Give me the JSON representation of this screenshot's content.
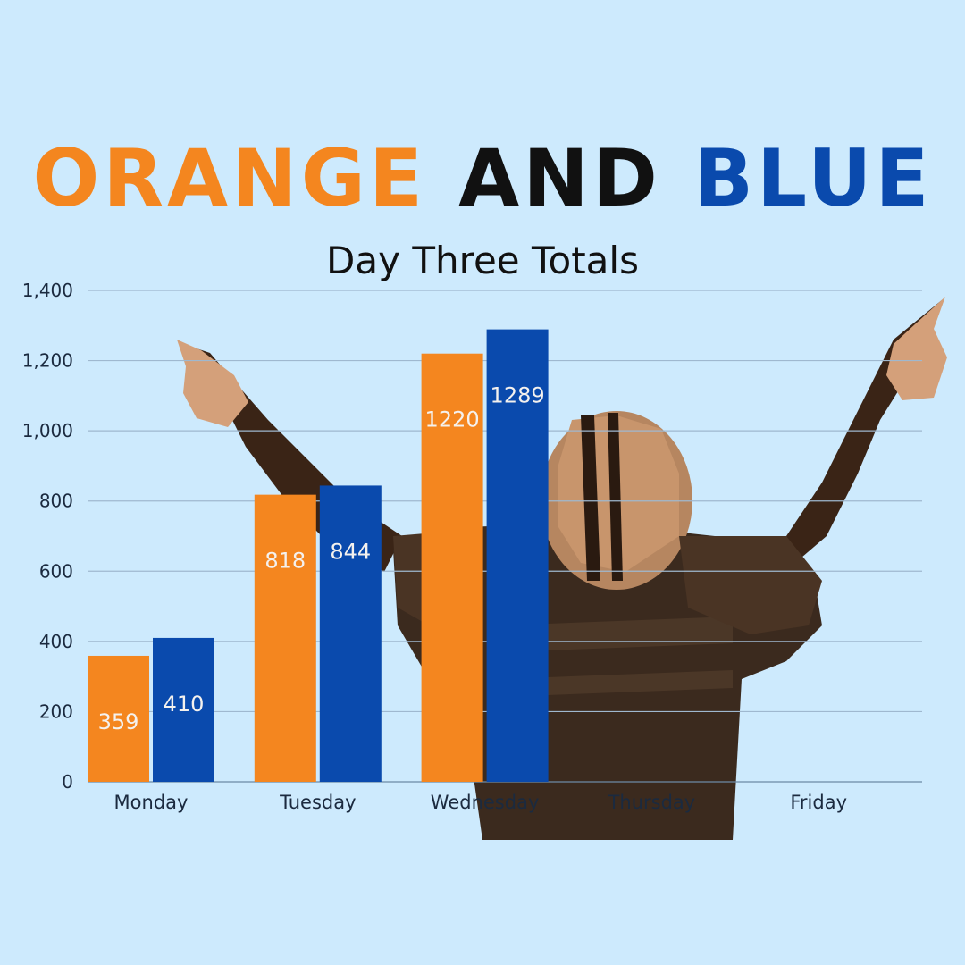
{
  "title": {
    "word1": "ORANGE",
    "word2": "AND",
    "word3": "BLUE",
    "word1_color": "#f4861f",
    "word2_color": "#111111",
    "word3_color": "#0a4aad"
  },
  "chart_data": {
    "type": "bar",
    "title": "ORANGE AND BLUE",
    "subtitle": "Day Three Totals",
    "categories": [
      "Monday",
      "Tuesday",
      "Wednesday",
      "Thursday",
      "Friday"
    ],
    "series": [
      {
        "color": "#f4861f",
        "values": [
          359,
          818,
          1220,
          null,
          null
        ]
      },
      {
        "color": "#0a4aad",
        "values": [
          410,
          844,
          1289,
          null,
          null
        ]
      }
    ],
    "ylim": [
      0,
      1400
    ],
    "yticks": [
      0,
      200,
      400,
      600,
      800,
      1000,
      1200,
      1400
    ],
    "ytick_labels": [
      "0",
      "200",
      "400",
      "600",
      "800",
      "1,000",
      "1,200",
      "1,400"
    ],
    "grid": true,
    "data_labels": true,
    "legend": "none",
    "background": "#cdeafd",
    "background_image": "football-player-celebrating-photo"
  }
}
